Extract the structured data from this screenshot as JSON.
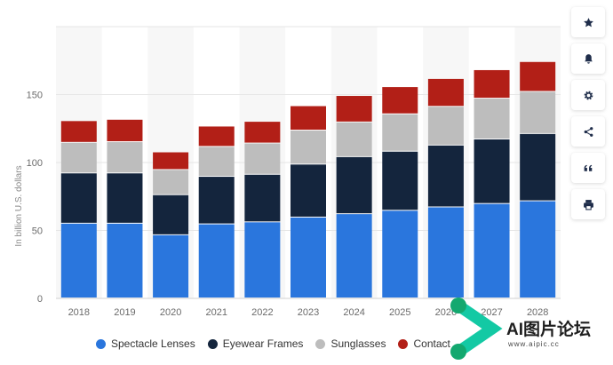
{
  "chart_data": {
    "type": "bar",
    "stacked": true,
    "categories": [
      "2018",
      "2019",
      "2020",
      "2021",
      "2022",
      "2023",
      "2024",
      "2025",
      "2026",
      "2027",
      "2028"
    ],
    "series": [
      {
        "name": "Spectacle Lenses",
        "color": "#2a76dd",
        "values": [
          55,
          55,
          46.5,
          54.5,
          56,
          59.5,
          62,
          64.5,
          67,
          69.5,
          71.5
        ]
      },
      {
        "name": "Eyewear Frames",
        "color": "#14253d",
        "values": [
          37,
          37,
          29.5,
          35,
          35,
          39,
          42,
          43.5,
          45.5,
          47.5,
          49.5
        ]
      },
      {
        "name": "Sunglasses",
        "color": "#bdbdbd",
        "values": [
          22.5,
          23,
          18.5,
          22,
          23,
          25,
          25.5,
          27.5,
          28.5,
          30,
          31
        ]
      },
      {
        "name": "Contact Lenses",
        "color": "#b21f17",
        "values": [
          16,
          16.5,
          13,
          15,
          16,
          18,
          19.5,
          20,
          20.5,
          21,
          22
        ]
      }
    ],
    "xlabel": "",
    "ylabel": "In billion U.S. dollars",
    "ylim": [
      0,
      200
    ],
    "yticks": [
      0,
      50,
      100,
      150
    ],
    "grid": true,
    "legend": "bottom"
  },
  "legend_labels": {
    "s0": "Spectacle Lenses",
    "s1": "Eyewear Frames",
    "s2": "Sunglasses",
    "s3": "Contact Lenses"
  },
  "toolbar": [
    {
      "icon": "star-icon"
    },
    {
      "icon": "bell-icon"
    },
    {
      "icon": "gear-icon"
    },
    {
      "icon": "share-icon"
    },
    {
      "icon": "quote-icon"
    },
    {
      "icon": "print-icon"
    }
  ],
  "watermark": {
    "logo_text": "AI图片论坛",
    "url_text": "www.aipic.cc"
  }
}
